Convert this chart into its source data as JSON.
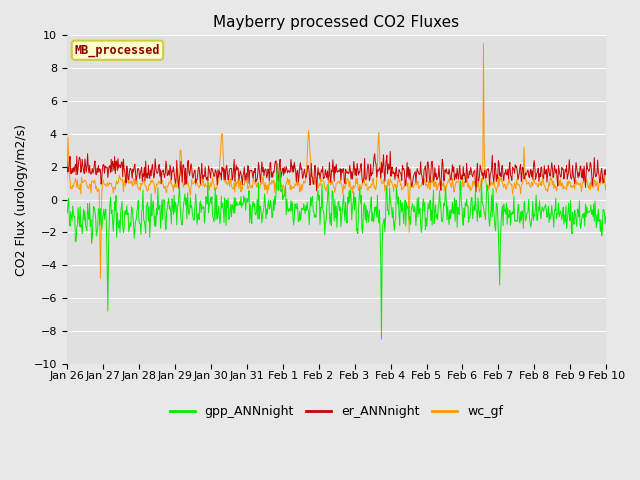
{
  "title": "Mayberry processed CO2 Fluxes",
  "ylabel": "CO2 Flux (urology/m2/s)",
  "ylim": [
    -10,
    10
  ],
  "yticks": [
    -10,
    -8,
    -6,
    -4,
    -2,
    0,
    2,
    4,
    6,
    8,
    10
  ],
  "fig_bg_color": "#e8e8e8",
  "plot_bg_color": "#e0e0e0",
  "legend_label": "MB_processed",
  "legend_label_color": "#8b0000",
  "legend_box_facecolor": "#ffffcc",
  "legend_box_edgecolor": "#cccc44",
  "line_colors": {
    "gpp_ANNnight": "#00ee00",
    "er_ANNnight": "#cc0000",
    "wc_gf": "#ff9900"
  },
  "n_points": 800,
  "xtick_labels": [
    "Jan 26",
    "Jan 27",
    "Jan 28",
    "Jan 29",
    "Jan 30",
    "Jan 31",
    "Feb 1",
    "Feb 2",
    "Feb 3",
    "Feb 4",
    "Feb 5",
    "Feb 6",
    "Feb 7",
    "Feb 8",
    "Feb 9",
    "Feb 10"
  ],
  "seed": 42,
  "title_fontsize": 11,
  "ylabel_fontsize": 9,
  "tick_fontsize": 8,
  "legend_fontsize": 9
}
